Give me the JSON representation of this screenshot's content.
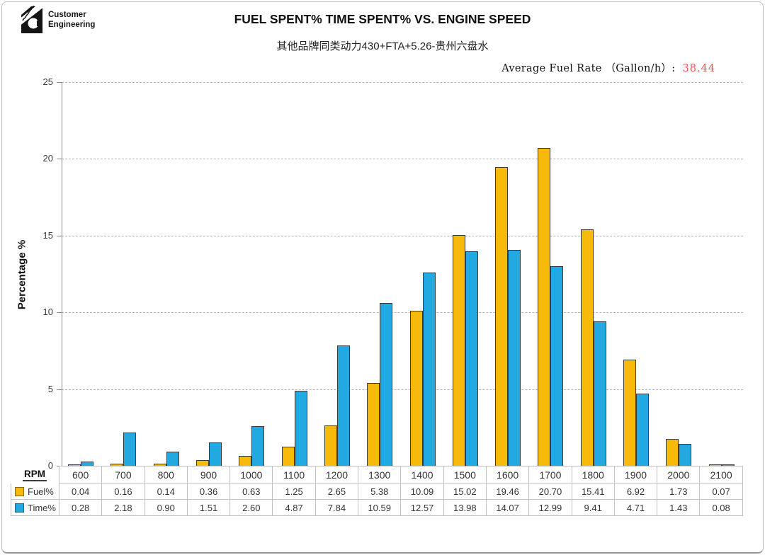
{
  "logo": {
    "line1": "Customer",
    "line2": "Engineering"
  },
  "header": {
    "title": "FUEL SPENT% TIME SPENT% VS. ENGINE SPEED",
    "subtitle": "其他品牌同类动力430+FTA+5.26-贵州六盘水",
    "avg_fuel_rate_label": "Average Fuel Rate （Gallon/h）:",
    "avg_fuel_rate_value": "38.44",
    "avg_fuel_rate_value_color": "#ff4d4d"
  },
  "chart_data": {
    "type": "bar",
    "title": "FUEL SPENT% TIME SPENT% VS. ENGINE SPEED",
    "xlabel": "RPM",
    "ylabel": "Percentage %",
    "ylim": [
      0,
      25
    ],
    "yticks": [
      0,
      5,
      10,
      15,
      20,
      25
    ],
    "grid": "horizontal-dashed",
    "legend_position": "table-left",
    "categories": [
      "600",
      "700",
      "800",
      "900",
      "1000",
      "1100",
      "1200",
      "1300",
      "1400",
      "1500",
      "1600",
      "1700",
      "1800",
      "1900",
      "2000",
      "2100"
    ],
    "series": [
      {
        "name": "Fuel%",
        "color": "#F8BA0A",
        "values": [
          "0.04",
          "0.16",
          "0.14",
          "0.36",
          "0.63",
          "1.25",
          "2.65",
          "5.38",
          "10.09",
          "15.02",
          "19.46",
          "20.70",
          "15.41",
          "6.92",
          "1.73",
          "0.07"
        ]
      },
      {
        "name": "Time%",
        "color": "#23A9E1",
        "values": [
          "0.28",
          "2.18",
          "0.90",
          "1.51",
          "2.60",
          "4.87",
          "7.84",
          "10.59",
          "12.57",
          "13.98",
          "14.07",
          "12.99",
          "9.41",
          "4.71",
          "1.43",
          "0.08"
        ]
      }
    ]
  },
  "table": {
    "corner_label": "RPM"
  }
}
